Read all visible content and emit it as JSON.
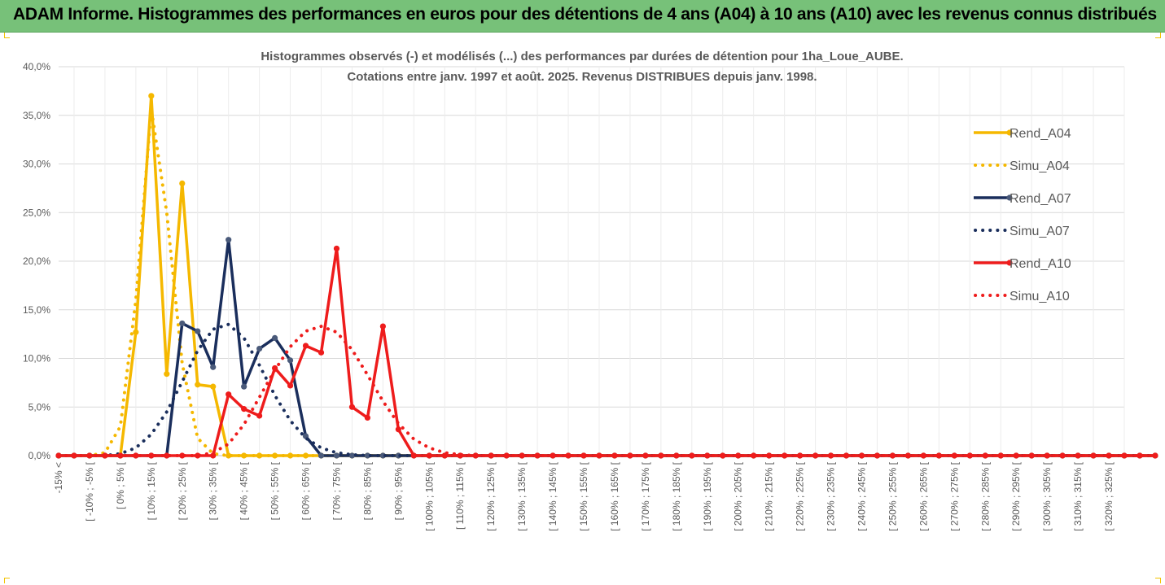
{
  "banner": {
    "title": "ADAM Informe. Histogrammes des performances en euros pour des détentions de 4 ans (A04) à 10 ans (A10) avec les revenus connus distribués"
  },
  "colors": {
    "banner_bg": "#77c179",
    "A04": "#f5b800",
    "A07": "#1a2e5c",
    "A07_marker": "#4a5a7a",
    "A10": "#ee1c1c",
    "gridline": "#d9d9d9",
    "text": "#595959"
  },
  "chart_data": {
    "type": "line",
    "title": [
      "Histogrammes observés (-) et modélisés (...) des performances par durées de détention pour 1ha_Loue_AUBE.",
      "Cotations entre janv. 1997 et août. 2025. Revenus DISTRIBUES depuis janv. 1998."
    ],
    "y_ticks": [
      "0,0%",
      "5,0%",
      "10,0%",
      "15,0%",
      "20,0%",
      "25,0%",
      "30,0%",
      "35,0%",
      "40,0%"
    ],
    "ylim": [
      0,
      40
    ],
    "y_unit": "%",
    "grid": true,
    "legend_position": "right",
    "x_labels": [
      "-15% <",
      "",
      "[ -10% ; -5% [",
      "",
      "[ 0% ; 5% [",
      "",
      "[ 10% ; 15% [",
      "",
      "[ 20% ; 25% [",
      "",
      "[ 30% ; 35% [",
      "",
      "[ 40% ; 45% [",
      "",
      "[ 50% ; 55% [",
      "",
      "[ 60% ; 65% [",
      "",
      "[ 70% ; 75% [",
      "",
      "[ 80% ; 85% [",
      "",
      "[ 90% ; 95% [",
      "",
      "[ 100% ; 105% [",
      "",
      "[ 110% ; 115% [",
      "",
      "[ 120% ; 125% [",
      "",
      "[ 130% ; 135% [",
      "",
      "[ 140% ; 145% [",
      "",
      "[ 150% ; 155% [",
      "",
      "[ 160% ; 165% [",
      "",
      "[ 170% ; 175% [",
      "",
      "[ 180% ; 185% [",
      "",
      "[ 190% ; 195% [",
      "",
      "[ 200% ; 205% [",
      "",
      "[ 210% ; 215% [",
      "",
      "[ 220% ; 225% [",
      "",
      "[ 230% ; 235% [",
      "",
      "[ 240% ; 245% [",
      "",
      "[ 250% ; 255% [",
      "",
      "[ 260% ; 265% [",
      "",
      "[ 270% ; 275% [",
      "",
      "[ 280% ; 285% [",
      "",
      "[ 290% ; 295% [",
      "",
      "[ 300% ; 305% [",
      "",
      "[ 310% ; 315% [",
      "",
      "[ 320% ; 325% [",
      ""
    ],
    "series": [
      {
        "name": "Rend_A04",
        "color_key": "A04",
        "style": "solid",
        "values": [
          0,
          0,
          0,
          0,
          0,
          12.7,
          37,
          8.4,
          28,
          7.3,
          7.1,
          0,
          0,
          0,
          0,
          0,
          0,
          0,
          0,
          0,
          0,
          0,
          0,
          0,
          0,
          0,
          0,
          0,
          0,
          0,
          0,
          0,
          0,
          0,
          0,
          0,
          0,
          0,
          0,
          0,
          0,
          0,
          0,
          0,
          0,
          0,
          0,
          0,
          0,
          0,
          0,
          0,
          0,
          0,
          0,
          0,
          0,
          0,
          0,
          0,
          0,
          0,
          0,
          0,
          0,
          0,
          0,
          0,
          0,
          0,
          0,
          0
        ]
      },
      {
        "name": "Simu_A04",
        "color_key": "A04",
        "style": "dotted",
        "values": [
          0,
          0,
          0,
          0.3,
          3,
          16,
          35.7,
          25,
          9.5,
          1.8,
          0.2,
          0,
          0,
          0,
          0,
          0,
          0,
          0,
          0,
          0,
          0,
          0,
          0,
          0,
          0,
          0,
          0,
          0,
          0,
          0,
          0,
          0,
          0,
          0,
          0,
          0,
          0,
          0,
          0,
          0,
          0,
          0,
          0,
          0,
          0,
          0,
          0,
          0,
          0,
          0,
          0,
          0,
          0,
          0,
          0,
          0,
          0,
          0,
          0,
          0,
          0,
          0,
          0,
          0,
          0,
          0,
          0,
          0,
          0,
          0,
          0,
          0
        ]
      },
      {
        "name": "Rend_A07",
        "color_key": "A07",
        "style": "solid",
        "values": [
          0,
          0,
          0,
          0,
          0,
          0,
          0,
          0,
          13.6,
          12.8,
          9.1,
          22.2,
          7.1,
          11,
          12.1,
          9.8,
          2,
          0,
          0,
          0,
          0,
          0,
          0,
          0,
          0,
          0,
          0,
          0,
          0,
          0,
          0,
          0,
          0,
          0,
          0,
          0,
          0,
          0,
          0,
          0,
          0,
          0,
          0,
          0,
          0,
          0,
          0,
          0,
          0,
          0,
          0,
          0,
          0,
          0,
          0,
          0,
          0,
          0,
          0,
          0,
          0,
          0,
          0,
          0,
          0,
          0,
          0,
          0,
          0,
          0,
          0,
          0
        ]
      },
      {
        "name": "Simu_A07",
        "color_key": "A07",
        "style": "dotted",
        "values": [
          0,
          0,
          0,
          0,
          0.2,
          0.8,
          2.2,
          4.5,
          7.6,
          10.8,
          13,
          13.5,
          12.1,
          9.3,
          6.2,
          3.6,
          1.8,
          0.8,
          0.3,
          0.1,
          0,
          0,
          0,
          0,
          0,
          0,
          0,
          0,
          0,
          0,
          0,
          0,
          0,
          0,
          0,
          0,
          0,
          0,
          0,
          0,
          0,
          0,
          0,
          0,
          0,
          0,
          0,
          0,
          0,
          0,
          0,
          0,
          0,
          0,
          0,
          0,
          0,
          0,
          0,
          0,
          0,
          0,
          0,
          0,
          0,
          0,
          0,
          0,
          0,
          0,
          0,
          0
        ]
      },
      {
        "name": "Rend_A10",
        "color_key": "A10",
        "style": "solid",
        "values": [
          0,
          0,
          0,
          0,
          0,
          0,
          0,
          0,
          0,
          0,
          0,
          6.3,
          4.8,
          4.1,
          9,
          7.2,
          11.3,
          10.6,
          21.3,
          5,
          3.9,
          13.3,
          2.7,
          0,
          0,
          0,
          0,
          0,
          0,
          0,
          0,
          0,
          0,
          0,
          0,
          0,
          0,
          0,
          0,
          0,
          0,
          0,
          0,
          0,
          0,
          0,
          0,
          0,
          0,
          0,
          0,
          0,
          0,
          0,
          0,
          0,
          0,
          0,
          0,
          0,
          0,
          0,
          0,
          0,
          0,
          0,
          0,
          0,
          0,
          0,
          0,
          0
        ]
      },
      {
        "name": "Simu_A10",
        "color_key": "A10",
        "style": "dotted",
        "values": [
          0,
          0,
          0,
          0,
          0,
          0,
          0,
          0,
          0,
          0,
          0.3,
          1.2,
          3.2,
          6,
          8.8,
          11.2,
          12.8,
          13.3,
          12.7,
          10.9,
          8.3,
          5.6,
          3.3,
          1.7,
          0.8,
          0.3,
          0.1,
          0,
          0,
          0,
          0,
          0,
          0,
          0,
          0,
          0,
          0,
          0,
          0,
          0,
          0,
          0,
          0,
          0,
          0,
          0,
          0,
          0,
          0,
          0,
          0,
          0,
          0,
          0,
          0,
          0,
          0,
          0,
          0,
          0,
          0,
          0,
          0,
          0,
          0,
          0,
          0,
          0,
          0,
          0,
          0,
          0
        ]
      }
    ]
  }
}
